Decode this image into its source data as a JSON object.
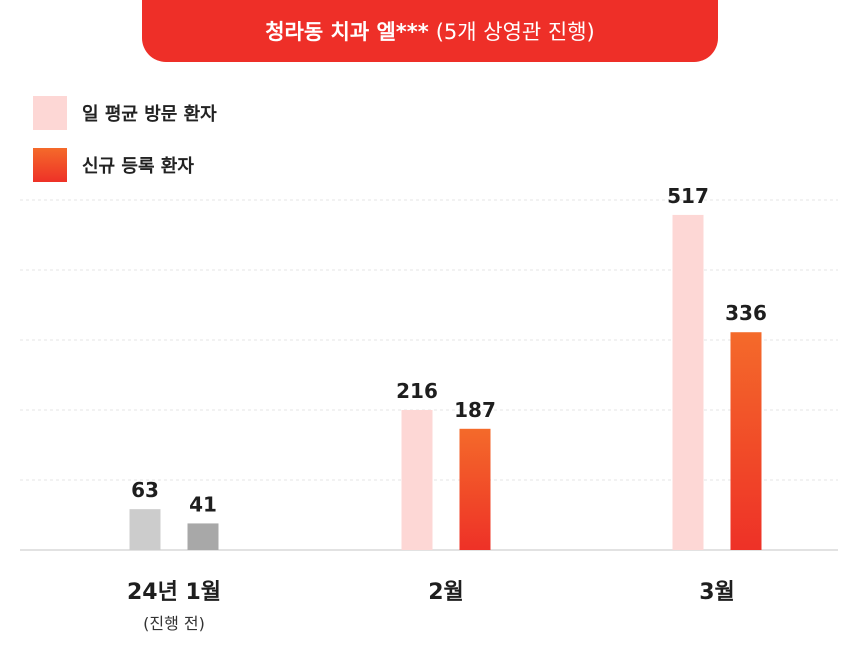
{
  "header": {
    "title_main": "청라동 치과 엘***",
    "title_sub": "(5개 상영관 진행)"
  },
  "legend": [
    {
      "label": "일 평균 방문 환자",
      "color": "#fdd7d5"
    },
    {
      "label": "신규 등록 환자",
      "color": "#f1452a"
    }
  ],
  "colors": {
    "visit": "#fdd7d5",
    "new_top": "#f46a2a",
    "new_bottom": "#ee3127",
    "before_visit": "#cccccc",
    "before_new": "#a8a8a8",
    "title_bg": "#ee2f28"
  },
  "chart_data": {
    "type": "bar",
    "categories": [
      "24년 1월",
      "2월",
      "3월"
    ],
    "category_notes": [
      "(진행 전)",
      "",
      ""
    ],
    "series": [
      {
        "name": "일 평균 방문 환자",
        "values": [
          63,
          216,
          517
        ]
      },
      {
        "name": "신규 등록 환자",
        "values": [
          41,
          187,
          336
        ]
      }
    ],
    "ylim": [
      0,
      540
    ],
    "grid": true,
    "legend_position": "top-left"
  }
}
